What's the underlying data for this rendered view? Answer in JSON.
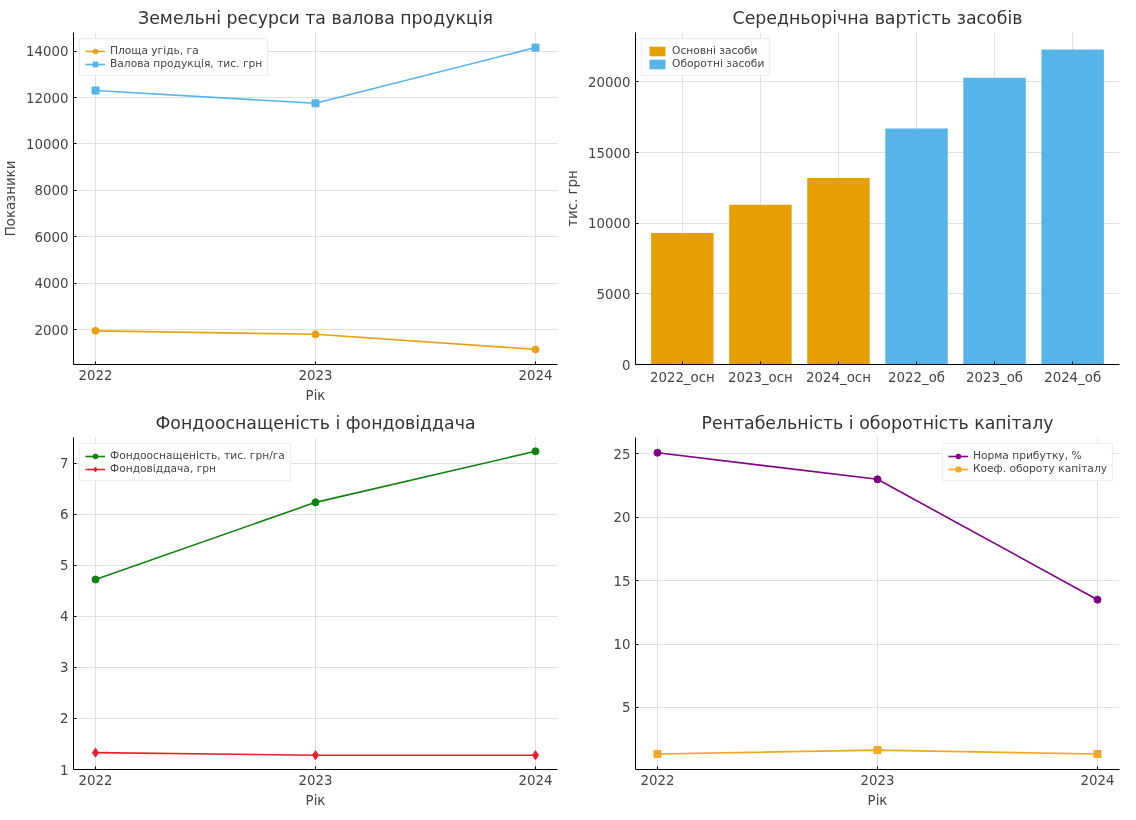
{
  "chart_data": [
    {
      "type": "line",
      "title": "Земельні ресурси та валова продукція",
      "xlabel": "Рік",
      "ylabel": "Показники",
      "x": [
        2022,
        2023,
        2024
      ],
      "xlim": [
        2021.9,
        2024.1
      ],
      "xticks": [
        2022,
        2023,
        2024
      ],
      "ylim": [
        500,
        14800
      ],
      "yticks": [
        2000,
        4000,
        6000,
        8000,
        10000,
        12000,
        14000
      ],
      "grid": true,
      "legend": "top left",
      "series": [
        {
          "name": "Площа угідь, га",
          "color": "#e6a117",
          "marker": "circle",
          "values": [
            1950,
            1800,
            1150
          ]
        },
        {
          "name": "Валова продукція, тис. грн",
          "color": "#56b4e9",
          "marker": "square",
          "values": [
            12300,
            11750,
            14150
          ]
        }
      ]
    },
    {
      "type": "bar",
      "title": "Середньорічна вартість засобів",
      "ylabel": "тис. грн",
      "categories": [
        "2022_осн",
        "2023_осн",
        "2024_осн",
        "2022_об",
        "2023_об",
        "2024_об"
      ],
      "ylim": [
        0,
        23500
      ],
      "yticks": [
        0,
        5000,
        10000,
        15000,
        20000
      ],
      "grid": true,
      "legend": "top left",
      "series": [
        {
          "name": "Основні засоби",
          "color": "#e69f00",
          "values": [
            9300,
            11300,
            13200,
            null,
            null,
            null
          ]
        },
        {
          "name": "Оборотні засоби",
          "color": "#56b4e9",
          "values": [
            null,
            null,
            null,
            16700,
            20300,
            22300
          ]
        }
      ]
    },
    {
      "type": "line",
      "title": "Фондооснащеність і фондовіддача",
      "xlabel": "Рік",
      "x": [
        2022,
        2023,
        2024
      ],
      "xlim": [
        2021.9,
        2024.1
      ],
      "xticks": [
        2022,
        2023,
        2024
      ],
      "ylim": [
        1,
        7.5
      ],
      "yticks": [
        1,
        2,
        3,
        4,
        5,
        6,
        7
      ],
      "grid": true,
      "legend": "top left",
      "series": [
        {
          "name": "Фондооснащеність, тис. грн/га",
          "color": "#108010",
          "marker": "circle",
          "values": [
            4.72,
            6.23,
            7.23
          ]
        },
        {
          "name": "Фондовіддача, грн",
          "color": "#e8202a",
          "marker": "diamond",
          "values": [
            1.33,
            1.28,
            1.28
          ]
        }
      ]
    },
    {
      "type": "line",
      "title": "Рентабельність і оборотність капіталу",
      "xlabel": "Рік",
      "x": [
        2022,
        2023,
        2024
      ],
      "xlim": [
        2021.9,
        2024.1
      ],
      "xticks": [
        2022,
        2023,
        2024
      ],
      "ylim": [
        0.1,
        26.3
      ],
      "yticks": [
        5,
        10,
        15,
        20,
        25
      ],
      "grid": true,
      "legend": "top right",
      "series": [
        {
          "name": "Норма прибутку, %",
          "color": "#800080",
          "marker": "circle",
          "values": [
            25.1,
            23.0,
            13.5
          ]
        },
        {
          "name": "Коеф. обороту капіталу",
          "color": "#f5a623",
          "marker": "square",
          "values": [
            1.32,
            1.63,
            1.32
          ]
        }
      ]
    }
  ]
}
